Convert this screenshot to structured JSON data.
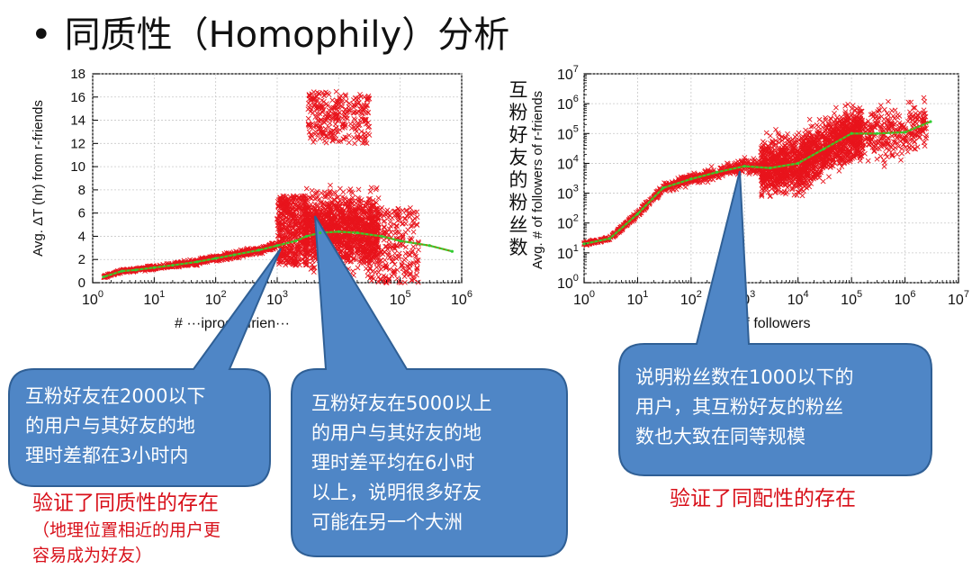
{
  "slide": {
    "bullet": "•",
    "title": "同质性（Homophily）分析"
  },
  "colors": {
    "scatter": "#e8141c",
    "fit_line": "#33cc33",
    "fit_dots": "#9a7a00",
    "callout_fill": "#4f86c6",
    "callout_stroke": "#2f5f95",
    "note": "#d8101a"
  },
  "left_chart": {
    "ylabel": "Avg. ΔT (hr) from r-friends",
    "xlabel_visible": "# ···iprocal frien···",
    "y_ticks": [
      "0",
      "2",
      "4",
      "6",
      "8",
      "10",
      "12",
      "14",
      "16",
      "18"
    ],
    "x_ticks": [
      "10^0",
      "10^1",
      "10^2",
      "10^3",
      "10^4",
      "10^5",
      "10^6"
    ]
  },
  "right_chart": {
    "ylabel": "Avg. # of followers of r-friends",
    "ylabel_cn": "互粉好友的粉丝数",
    "xlabel_visible": "of followers",
    "y_ticks": [
      "10^0",
      "10^1",
      "10^2",
      "10^3",
      "10^4",
      "10^5",
      "10^6",
      "10^7"
    ],
    "x_ticks": [
      "10^0",
      "10^1",
      "10^2",
      "10^3",
      "10^4",
      "10^5",
      "10^6",
      "10^7"
    ]
  },
  "callouts": {
    "c1": [
      "互粉好友在2000以下",
      "的用户与其好友的地",
      "理时差都在3小时内"
    ],
    "c2": [
      "互粉好友在5000以上",
      "的用户与其好友的地",
      "理时差平均在6小时",
      "以上，说明很多好友",
      "可能在另一个大洲"
    ],
    "c3": [
      "说明粉丝数在1000以下的",
      "用户，其互粉好友的粉丝",
      "数也大致在同等规模"
    ]
  },
  "notes": {
    "left": [
      "验证了同质性的存在",
      "（地理位置相近的用户更",
      "容易成为好友）"
    ],
    "right": "验证了同配性的存在"
  },
  "chart_data": [
    {
      "type": "scatter",
      "x_scale": "log",
      "xlim": [
        1,
        1000000
      ],
      "ylim": [
        0,
        18
      ],
      "series": [
        {
          "kind": "fit",
          "x": [
            1.5,
            3,
            5,
            10,
            20,
            50,
            100,
            200,
            500,
            1000,
            2000,
            3000,
            5000,
            10000,
            20000,
            50000,
            100000,
            300000,
            700000
          ],
          "y": [
            0.5,
            1.0,
            1.1,
            1.3,
            1.5,
            1.8,
            2.1,
            2.4,
            2.8,
            3.2,
            3.6,
            4.0,
            4.3,
            4.4,
            4.3,
            4.0,
            3.6,
            3.2,
            2.7
          ]
        },
        {
          "kind": "scatter",
          "density_regions": [
            {
              "x": [
                1.5,
                1000
              ],
              "y_center": "fit",
              "spread": 0.35
            },
            {
              "x": [
                1000,
                3000
              ],
              "y": [
                1.5,
                7.5
              ]
            },
            {
              "x": [
                3000,
                40000
              ],
              "y": [
                0.5,
                16.5
              ]
            },
            {
              "x": [
                40000,
                200000
              ],
              "y": [
                0,
                7
              ]
            }
          ]
        }
      ]
    },
    {
      "type": "scatter",
      "x_scale": "log",
      "y_scale": "log",
      "xlim": [
        1,
        10000000
      ],
      "ylim": [
        1,
        10000000
      ],
      "series": [
        {
          "kind": "fit",
          "x": [
            1,
            3,
            10,
            30,
            100,
            300,
            1000,
            3000,
            10000,
            30000,
            100000,
            300000,
            1000000,
            3000000
          ],
          "y": [
            20,
            30,
            200,
            1500,
            3000,
            5000,
            8000,
            7000,
            10000,
            30000,
            100000,
            100000,
            110000,
            250000
          ]
        },
        {
          "kind": "scatter",
          "density_regions": [
            {
              "x": [
                1,
                2000
              ],
              "y_center": "fit",
              "spread": 0.25
            },
            {
              "x": [
                2000,
                200000
              ],
              "y": [
                10,
                1000000
              ]
            },
            {
              "x": [
                200000,
                3000000
              ],
              "y": [
                100,
                1000000
              ]
            }
          ]
        }
      ]
    }
  ]
}
